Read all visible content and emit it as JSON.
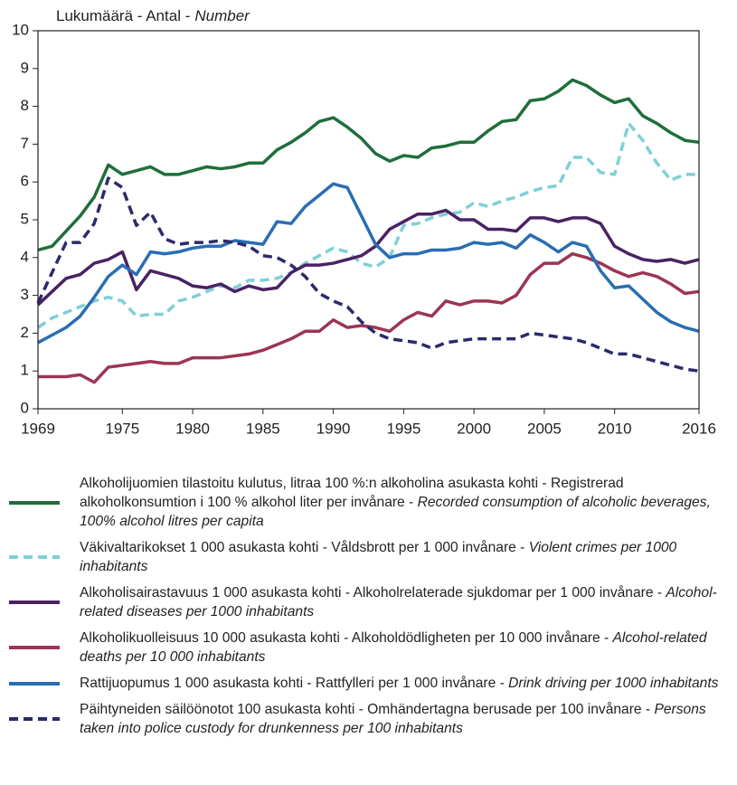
{
  "chart_data": {
    "type": "line",
    "ylabel": [
      "Lukumäärä - Antal -",
      "Number"
    ],
    "x": [
      1969,
      1970,
      1971,
      1972,
      1973,
      1974,
      1975,
      1976,
      1977,
      1978,
      1979,
      1980,
      1981,
      1982,
      1983,
      1984,
      1985,
      1986,
      1987,
      1988,
      1989,
      1990,
      1991,
      1992,
      1993,
      1994,
      1995,
      1996,
      1997,
      1998,
      1999,
      2000,
      2001,
      2002,
      2003,
      2004,
      2005,
      2006,
      2007,
      2008,
      2009,
      2010,
      2011,
      2012,
      2013,
      2014,
      2015,
      2016
    ],
    "xlim": [
      1969,
      2016
    ],
    "xticks": [
      1969,
      1975,
      1980,
      1985,
      1990,
      1995,
      2000,
      2005,
      2010,
      2016
    ],
    "ylim": [
      0,
      10
    ],
    "yticks": [
      0,
      1,
      2,
      3,
      4,
      5,
      6,
      7,
      8,
      9,
      10
    ],
    "series": [
      {
        "name": [
          "Alkoholijuomien tilastoitu kulutus, litraa 100 %:n alkoholina asukasta kohti - Registrerad alkoholkonsumtion i 100 % alkohol liter per invånare -",
          "Recorded consumption of alcoholic beverages, 100% alcohol litres per capita"
        ],
        "color": "#1f6e3a",
        "dash": false,
        "values": [
          4.2,
          4.3,
          4.7,
          5.1,
          5.6,
          6.45,
          6.2,
          6.3,
          6.4,
          6.2,
          6.2,
          6.3,
          6.4,
          6.35,
          6.4,
          6.5,
          6.5,
          6.85,
          7.05,
          7.3,
          7.6,
          7.7,
          7.45,
          7.15,
          6.75,
          6.55,
          6.7,
          6.65,
          6.9,
          6.95,
          7.05,
          7.05,
          7.35,
          7.6,
          7.65,
          8.15,
          8.2,
          8.4,
          8.7,
          8.55,
          8.3,
          8.1,
          8.2,
          7.75,
          7.55,
          7.3,
          7.1,
          7.05
        ]
      },
      {
        "name": [
          "Väkivaltarikokset 1 000 asukasta kohti - Våldsbrott per 1 000 invånare -",
          "Violent crimes per 1000 inhabitants"
        ],
        "color": "#7fcfd6",
        "dash": true,
        "values": [
          2.15,
          2.4,
          2.55,
          2.7,
          2.85,
          2.95,
          2.85,
          2.45,
          2.5,
          2.5,
          2.85,
          2.95,
          3.1,
          3.25,
          3.2,
          3.4,
          3.4,
          3.45,
          3.6,
          3.85,
          4.05,
          4.25,
          4.15,
          3.85,
          3.75,
          4.0,
          4.85,
          4.9,
          5.05,
          5.15,
          5.2,
          5.45,
          5.35,
          5.5,
          5.6,
          5.75,
          5.85,
          5.9,
          6.65,
          6.65,
          6.25,
          6.2,
          7.55,
          7.1,
          6.5,
          6.05,
          6.2,
          6.2
        ]
      },
      {
        "name": [
          "Alkoholisairastavuus 1 000 asukasta kohti - Alkoholrelaterade sjukdomar per 1 000 invånare -",
          "Alcohol-related diseases per 1000 inhabitants"
        ],
        "color": "#4a2263",
        "dash": false,
        "values": [
          2.75,
          3.1,
          3.45,
          3.55,
          3.85,
          3.95,
          4.15,
          3.15,
          3.65,
          3.55,
          3.45,
          3.25,
          3.2,
          3.3,
          3.1,
          3.25,
          3.15,
          3.2,
          3.6,
          3.8,
          3.8,
          3.85,
          3.95,
          4.05,
          4.3,
          4.75,
          4.95,
          5.15,
          5.15,
          5.25,
          5.0,
          5.0,
          4.75,
          4.75,
          4.7,
          5.05,
          5.05,
          4.95,
          5.05,
          5.05,
          4.9,
          4.3,
          4.1,
          3.95,
          3.9,
          3.95,
          3.85,
          3.95
        ]
      },
      {
        "name": [
          "Alkoholikuolleisuus 10 000 asukasta kohti - Alkoholdödligheten per 10 000 invånare -",
          "Alcohol-related deaths per 10 000 inhabitants"
        ],
        "color": "#9c3553",
        "dash": false,
        "values": [
          0.85,
          0.85,
          0.85,
          0.9,
          0.7,
          1.1,
          1.15,
          1.2,
          1.25,
          1.2,
          1.2,
          1.35,
          1.35,
          1.35,
          1.4,
          1.45,
          1.55,
          1.7,
          1.85,
          2.05,
          2.05,
          2.35,
          2.15,
          2.2,
          2.15,
          2.05,
          2.35,
          2.55,
          2.45,
          2.85,
          2.75,
          2.85,
          2.85,
          2.8,
          3.0,
          3.55,
          3.85,
          3.85,
          4.1,
          4.0,
          3.85,
          3.65,
          3.5,
          3.6,
          3.5,
          3.3,
          3.05,
          3.1
        ]
      },
      {
        "name": [
          "Rattijuopumus 1 000 asukasta kohti - Rattfylleri per 1 000 invånare -",
          "Drink driving per 1000 inhabitants"
        ],
        "color": "#2a6db3",
        "dash": false,
        "values": [
          1.75,
          1.95,
          2.15,
          2.45,
          2.95,
          3.5,
          3.8,
          3.55,
          4.15,
          4.1,
          4.15,
          4.25,
          4.3,
          4.3,
          4.45,
          4.4,
          4.35,
          4.95,
          4.9,
          5.35,
          5.65,
          5.95,
          5.85,
          5.1,
          4.35,
          4.0,
          4.1,
          4.1,
          4.2,
          4.2,
          4.25,
          4.4,
          4.35,
          4.4,
          4.25,
          4.6,
          4.4,
          4.15,
          4.4,
          4.3,
          3.65,
          3.2,
          3.25,
          2.9,
          2.55,
          2.3,
          2.15,
          2.05
        ]
      },
      {
        "name": [
          "Päihtyneiden säilöönotot 100 asukasta kohti - Omhändertagna berusade per 100 invånare -",
          "Persons taken into police custody for drunkenness per 100 inhabitants"
        ],
        "color": "#2b2a6b",
        "dash": true,
        "values": [
          2.8,
          3.6,
          4.4,
          4.4,
          4.9,
          6.1,
          5.85,
          4.85,
          5.2,
          4.5,
          4.35,
          4.4,
          4.4,
          4.45,
          4.4,
          4.3,
          4.05,
          4.0,
          3.8,
          3.5,
          3.05,
          2.85,
          2.7,
          2.3,
          2.0,
          1.85,
          1.8,
          1.75,
          1.6,
          1.75,
          1.8,
          1.85,
          1.85,
          1.85,
          1.85,
          2.0,
          1.95,
          1.9,
          1.85,
          1.75,
          1.6,
          1.45,
          1.45,
          1.35,
          1.25,
          1.15,
          1.05,
          1.0
        ]
      }
    ]
  }
}
